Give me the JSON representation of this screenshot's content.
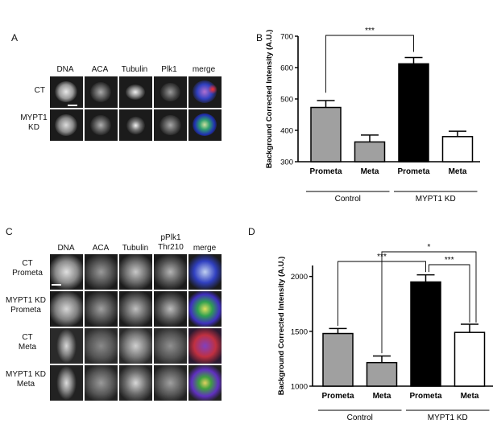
{
  "panels": {
    "A": {
      "letter": "A",
      "columns": [
        "DNA",
        "ACA",
        "Tubulin",
        "Plk1",
        "merge"
      ],
      "rows": [
        [
          "CT"
        ],
        [
          "MYPT1",
          "KD"
        ]
      ]
    },
    "B": {
      "letter": "B",
      "group_labels": [
        "Control",
        "MYPT1 KD"
      ],
      "significance": [
        "***"
      ]
    },
    "C": {
      "letter": "C",
      "columns": [
        [
          "DNA"
        ],
        [
          "ACA"
        ],
        [
          "Tubulin"
        ],
        [
          "pPlk1",
          "Thr210"
        ],
        [
          "merge"
        ]
      ],
      "rows": [
        [
          "CT",
          "Prometa"
        ],
        [
          "MYPT1 KD",
          "Prometa"
        ],
        [
          "CT",
          "Meta"
        ],
        [
          "MYPT1 KD",
          "Meta"
        ]
      ]
    },
    "D": {
      "letter": "D",
      "group_labels": [
        "Control",
        "MYPT1 KD"
      ],
      "significance": [
        "***",
        "***",
        "*"
      ]
    }
  },
  "colors": {
    "gray_bar": "#a0a0a0",
    "black_bar": "#000000",
    "white_bar": "#ffffff"
  },
  "chart_data": [
    {
      "type": "bar",
      "panel": "B",
      "ylabel": "Background  Corrected Intensity (A.U.)",
      "categories": [
        "Prometa",
        "Meta",
        "Prometa",
        "Meta"
      ],
      "values": [
        473,
        363,
        612,
        380
      ],
      "errors": [
        22,
        22,
        20,
        17
      ],
      "bar_colors": [
        "#a0a0a0",
        "#a0a0a0",
        "#000000",
        "#ffffff"
      ],
      "ylim": [
        300,
        700
      ],
      "yticks": [
        300,
        400,
        500,
        600,
        700
      ]
    },
    {
      "type": "bar",
      "panel": "D",
      "ylabel": "Background  Corrected Intensity (A.U.)",
      "categories": [
        "Prometa",
        "Meta",
        "Prometa",
        "Meta"
      ],
      "values": [
        1480,
        1215,
        1950,
        1490
      ],
      "errors": [
        45,
        60,
        65,
        75
      ],
      "bar_colors": [
        "#a0a0a0",
        "#a0a0a0",
        "#000000",
        "#ffffff"
      ],
      "ylim": [
        1000,
        2100
      ],
      "yticks": [
        1000,
        1500,
        2000
      ]
    }
  ]
}
